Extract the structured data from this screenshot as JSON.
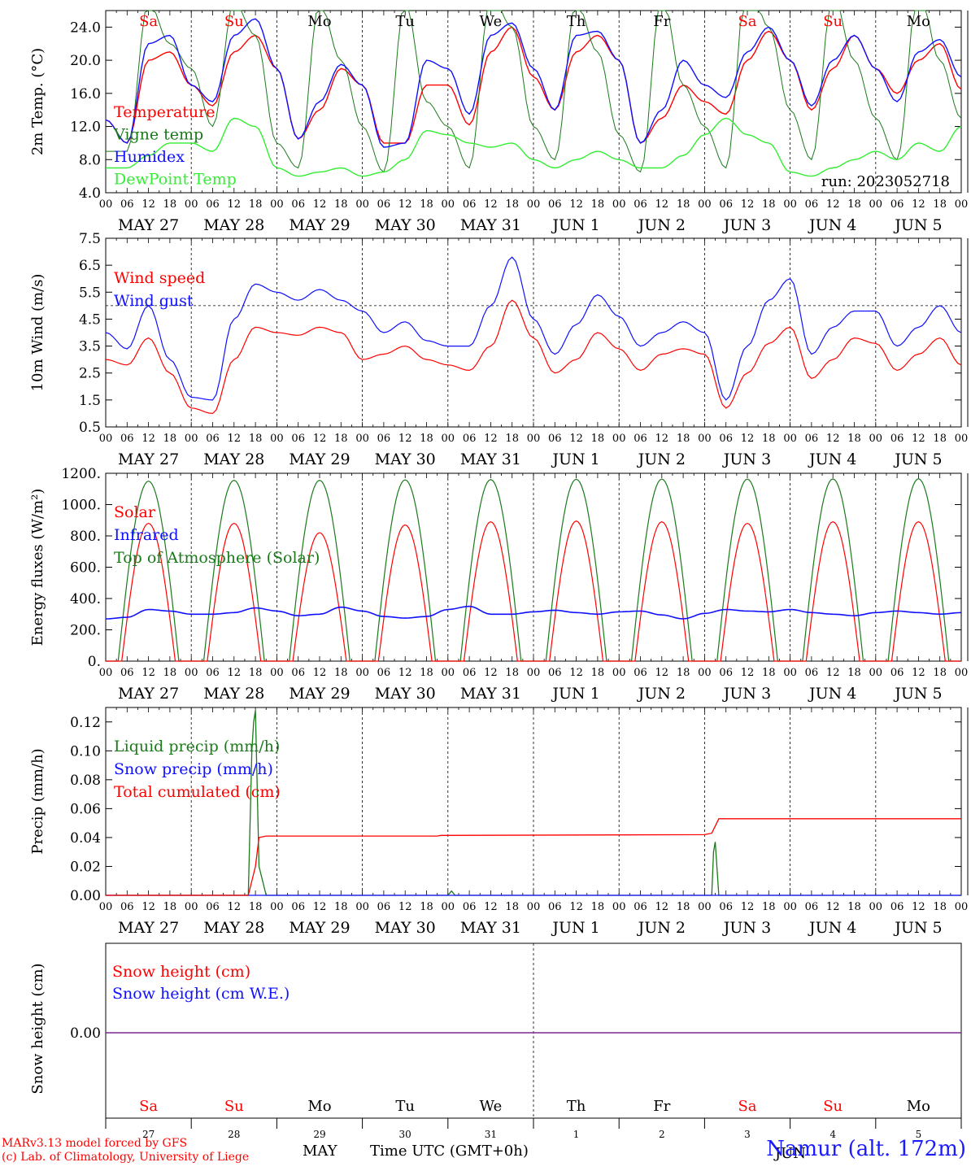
{
  "run_label": "run: 2023052718",
  "footer": {
    "model": "MARv3.13 model forced by GFS",
    "copyright": "(c) Lab. of Climatology, University of Liege",
    "axis_title": "Time UTC (GMT+0h)",
    "month": "MAY",
    "month2": "JUN",
    "station": "Namur (alt. 172m)"
  },
  "days": [
    {
      "abbr": "Sa",
      "date": "MAY 27",
      "num": "27",
      "weekend": true
    },
    {
      "abbr": "Su",
      "date": "MAY 28",
      "num": "28",
      "weekend": true
    },
    {
      "abbr": "Mo",
      "date": "MAY 29",
      "num": "29",
      "weekend": false
    },
    {
      "abbr": "Tu",
      "date": "MAY 30",
      "num": "30",
      "weekend": false
    },
    {
      "abbr": "We",
      "date": "MAY 31",
      "num": "31",
      "weekend": false
    },
    {
      "abbr": "Th",
      "date": "JUN  1",
      "num": "1",
      "weekend": false
    },
    {
      "abbr": "Fr",
      "date": "JUN  2",
      "num": "2",
      "weekend": false
    },
    {
      "abbr": "Sa",
      "date": "JUN  3",
      "num": "3",
      "weekend": true
    },
    {
      "abbr": "Su",
      "date": "JUN  4",
      "num": "4",
      "weekend": true
    },
    {
      "abbr": "Mo",
      "date": "JUN  5",
      "num": "5",
      "weekend": false
    }
  ],
  "hour_ticks": [
    "00",
    "06",
    "12",
    "18"
  ],
  "colors": {
    "red": "#ff0000",
    "green": "#1a7a1a",
    "blue": "#1010ff",
    "lightgreen": "#33ee33",
    "purple": "#7a2a8a"
  },
  "chart_data": [
    {
      "type": "line",
      "ylabel": "2m Temp. (°C)",
      "ylim": [
        4,
        26
      ],
      "yticks": [
        "4.0",
        "8.0",
        "12.0",
        "16.0",
        "20.0",
        "24.0"
      ],
      "x_unit": "hours since 2023-05-27 00 UTC",
      "series": [
        {
          "name": "Temperature",
          "color": "red",
          "x": [
            0,
            6,
            12,
            18,
            24,
            30,
            36,
            42,
            48,
            54,
            60,
            66,
            72,
            78,
            84,
            90,
            96,
            102,
            108,
            114,
            120,
            126,
            132,
            138,
            144,
            150,
            156,
            162,
            168,
            174,
            180,
            186,
            192,
            198,
            204,
            210,
            216,
            222,
            228,
            234,
            240
          ],
          "values": [
            12.8,
            10,
            20,
            21,
            17,
            14.5,
            21,
            23,
            19,
            10.5,
            14,
            19,
            17,
            10,
            10,
            17,
            17,
            12.2,
            21,
            24,
            18,
            14,
            21,
            23,
            20,
            10,
            13,
            17,
            15,
            13.5,
            20,
            23.5,
            20,
            14,
            19,
            23,
            19,
            16,
            20,
            22,
            16.5
          ]
        },
        {
          "name": "Vigne temp",
          "color": "green",
          "x": [
            0,
            6,
            12,
            18,
            24,
            30,
            36,
            42,
            48,
            54,
            60,
            66,
            72,
            78,
            84,
            90,
            96,
            102,
            108,
            114,
            120,
            126,
            132,
            138,
            144,
            150,
            156,
            162,
            168,
            174,
            180,
            186,
            192,
            198,
            204,
            210,
            216,
            222,
            228,
            234,
            240
          ],
          "values": [
            9,
            9,
            27,
            22,
            19,
            12,
            27,
            23,
            10,
            7,
            27,
            20,
            12,
            6.5,
            27,
            15,
            12,
            7,
            28,
            24,
            12,
            8,
            27,
            21,
            11,
            6.5,
            28,
            17,
            12,
            7,
            30,
            24,
            14,
            8,
            28,
            20,
            13,
            8,
            29,
            20,
            13
          ]
        },
        {
          "name": "Humidex",
          "color": "blue",
          "x": [
            0,
            6,
            12,
            18,
            24,
            30,
            36,
            42,
            48,
            54,
            60,
            66,
            72,
            78,
            84,
            90,
            96,
            102,
            108,
            114,
            120,
            126,
            132,
            138,
            144,
            150,
            156,
            162,
            168,
            174,
            180,
            186,
            192,
            198,
            204,
            210,
            216,
            222,
            228,
            234,
            240
          ],
          "values": [
            12.8,
            10,
            22,
            23,
            17,
            15,
            23,
            25,
            19,
            10.5,
            15,
            19.5,
            17,
            9.5,
            10,
            20,
            19,
            13.5,
            23,
            24.5,
            19,
            14,
            23,
            23.5,
            20,
            10,
            14,
            20,
            17,
            15.5,
            21,
            24,
            20,
            14.5,
            20,
            23,
            19,
            15,
            21,
            22.5,
            18
          ]
        },
        {
          "name": "DewPoint Temp",
          "color": "lightgreen",
          "x": [
            0,
            6,
            12,
            18,
            24,
            30,
            36,
            42,
            48,
            54,
            60,
            66,
            72,
            78,
            84,
            90,
            96,
            102,
            108,
            114,
            120,
            126,
            132,
            138,
            144,
            150,
            156,
            162,
            168,
            174,
            180,
            186,
            192,
            198,
            204,
            210,
            216,
            222,
            228,
            234,
            240
          ],
          "values": [
            7,
            7,
            8.5,
            10,
            10,
            9,
            13,
            12,
            7,
            6,
            6.5,
            7,
            6,
            6.5,
            8,
            11.5,
            11,
            10,
            9.5,
            10,
            8,
            7,
            8,
            9,
            8,
            7,
            7,
            8.5,
            11,
            13,
            11,
            10,
            6.5,
            6,
            7,
            8,
            9,
            8,
            10,
            9,
            12
          ]
        }
      ]
    },
    {
      "type": "line",
      "ylabel": "10m Wind (m/s)",
      "ylim": [
        0.5,
        7.5
      ],
      "yticks": [
        "0.5",
        "1.5",
        "2.5",
        "3.5",
        "4.5",
        "5.5",
        "6.5",
        "7.5"
      ],
      "reference_line": 5.0,
      "series": [
        {
          "name": "Wind speed",
          "color": "red",
          "x": [
            0,
            6,
            12,
            18,
            24,
            30,
            36,
            42,
            48,
            54,
            60,
            66,
            72,
            78,
            84,
            90,
            96,
            102,
            108,
            114,
            120,
            126,
            132,
            138,
            144,
            150,
            156,
            162,
            168,
            174,
            180,
            186,
            192,
            198,
            204,
            210,
            216,
            222,
            228,
            234,
            240
          ],
          "values": [
            3,
            2.8,
            3.8,
            2.5,
            1.2,
            1.0,
            3.0,
            4.2,
            4,
            3.9,
            4.2,
            4,
            3.0,
            3.2,
            3.5,
            3,
            2.8,
            2.6,
            3.5,
            5.2,
            3.8,
            2.5,
            3,
            4,
            3.4,
            2.6,
            3.2,
            3.4,
            3.2,
            1.2,
            2.5,
            3.6,
            4.2,
            2.3,
            3,
            3.8,
            3.6,
            2.6,
            3.2,
            3.8,
            2.8
          ]
        },
        {
          "name": "Wind gust",
          "color": "blue",
          "x": [
            0,
            6,
            12,
            18,
            24,
            30,
            36,
            42,
            48,
            54,
            60,
            66,
            72,
            78,
            84,
            90,
            96,
            102,
            108,
            114,
            120,
            126,
            132,
            138,
            144,
            150,
            156,
            162,
            168,
            174,
            180,
            186,
            192,
            198,
            204,
            210,
            216,
            222,
            228,
            234,
            240
          ],
          "values": [
            4,
            3.4,
            5,
            3,
            1.6,
            1.5,
            4.5,
            5.8,
            5.5,
            5.2,
            5.6,
            5.2,
            4.8,
            4,
            4.4,
            3.7,
            3.5,
            3.5,
            5,
            6.8,
            4.5,
            3.2,
            4.3,
            5.4,
            4.6,
            3.5,
            4,
            4.4,
            4,
            1.5,
            3.5,
            5.2,
            6,
            3.2,
            4.2,
            4.8,
            4.8,
            3.5,
            4.2,
            5,
            4
          ]
        }
      ]
    },
    {
      "type": "line",
      "ylabel": "Energy fluxes (W/m²)",
      "ylim": [
        0,
        1200
      ],
      "yticks": [
        "0.",
        "200.",
        "400.",
        "600.",
        "800.",
        "1000.",
        "1200."
      ],
      "series": [
        {
          "name": "Solar",
          "color": "red",
          "peaks": [
            880,
            880,
            820,
            870,
            890,
            895,
            890,
            880,
            890,
            890
          ]
        },
        {
          "name": "Infrared",
          "color": "blue",
          "x": [
            0,
            6,
            12,
            18,
            24,
            30,
            36,
            42,
            48,
            54,
            60,
            66,
            72,
            78,
            84,
            90,
            96,
            102,
            108,
            114,
            120,
            126,
            132,
            138,
            144,
            150,
            156,
            162,
            168,
            174,
            180,
            186,
            192,
            198,
            204,
            210,
            216,
            222,
            228,
            234,
            240
          ],
          "values": [
            270,
            280,
            330,
            320,
            300,
            300,
            310,
            340,
            320,
            290,
            300,
            345,
            320,
            285,
            275,
            285,
            330,
            350,
            300,
            300,
            315,
            325,
            310,
            300,
            315,
            320,
            295,
            270,
            305,
            330,
            320,
            315,
            330,
            310,
            300,
            290,
            310,
            320,
            310,
            300,
            310
          ]
        },
        {
          "name": "Top of Atmosphere (Solar)",
          "color": "green",
          "peaks": [
            1150,
            1155,
            1155,
            1158,
            1160,
            1162,
            1163,
            1163,
            1164,
            1165
          ]
        }
      ]
    },
    {
      "type": "line",
      "ylabel": "Precip (mm/h)",
      "ylim": [
        0,
        0.13
      ],
      "yticks": [
        "0.00",
        "0.02",
        "0.04",
        "0.06",
        "0.08",
        "0.10",
        "0.12"
      ],
      "series": [
        {
          "name": "Liquid precip (mm/h)",
          "color": "green",
          "x": [
            0,
            40,
            41,
            41.5,
            42,
            43,
            45,
            96,
            97,
            98,
            170,
            170.5,
            171,
            172,
            240
          ],
          "values": [
            0,
            0,
            0.1,
            0.12,
            0.128,
            0.02,
            0,
            0,
            0.003,
            0,
            0,
            0.03,
            0.037,
            0,
            0
          ]
        },
        {
          "name": "Snow precip (mm/h)",
          "color": "blue",
          "x": [
            0,
            240
          ],
          "values": [
            0,
            0
          ]
        },
        {
          "name": "Total cumulated (cm)",
          "color": "red",
          "x": [
            0,
            40,
            42,
            43,
            45,
            93,
            94,
            168,
            170,
            172,
            240
          ],
          "values": [
            0,
            0,
            0.02,
            0.04,
            0.041,
            0.041,
            0.0415,
            0.042,
            0.043,
            0.053,
            0.053
          ]
        }
      ]
    },
    {
      "type": "line",
      "ylabel": "Snow height (cm)",
      "yticks": [
        "0.00"
      ],
      "series": [
        {
          "name": "Snow height (cm)",
          "color": "red",
          "x": [
            0,
            240
          ],
          "values": [
            0,
            0
          ]
        },
        {
          "name": "Snow height (cm W.E.)",
          "color": "blue",
          "x": [
            0,
            240
          ],
          "values": [
            0,
            0
          ]
        }
      ]
    }
  ]
}
